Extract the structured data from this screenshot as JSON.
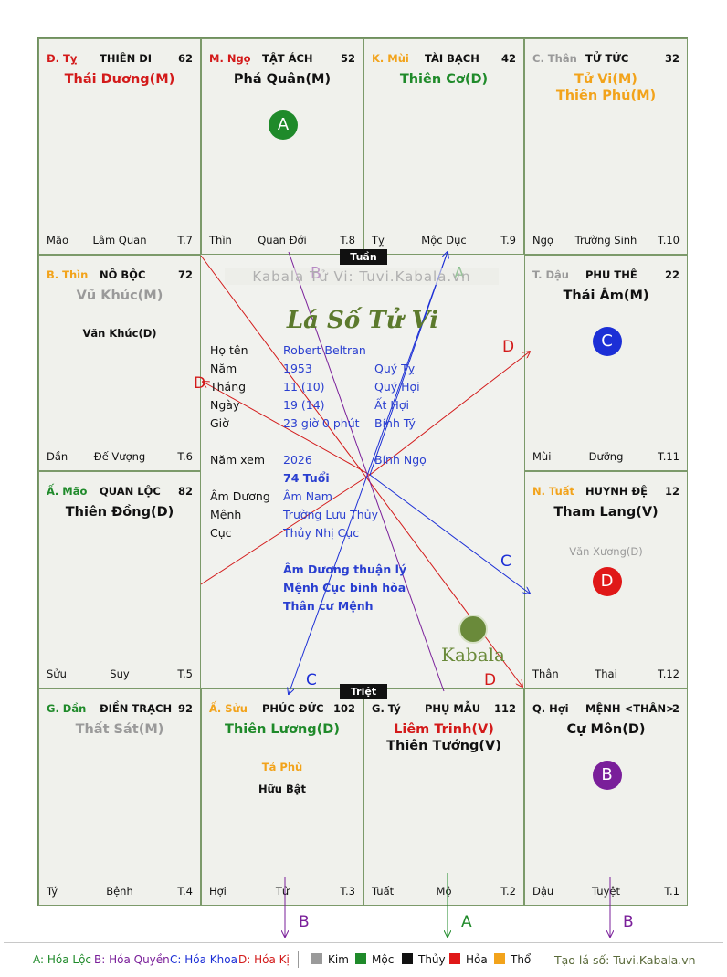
{
  "colors": {
    "green": "#1f8a2a",
    "purple": "#7a1f9a",
    "blue": "#1c2fd6",
    "red": "#d31a1a",
    "orange": "#f2a31b",
    "gray": "#9a9a9a",
    "black": "#111111"
  },
  "cells": [
    {
      "branch": "Đ. Tỵ",
      "branch_color": "#d31a1a",
      "palace": "THIÊN DI",
      "num": "62",
      "main": [
        {
          "t": "Thái Dương(M)",
          "c": "#d31a1a"
        }
      ],
      "minor": [],
      "foot_l": "Mão",
      "foot_m": "Lâm Quan",
      "foot_r": "T.7",
      "badge": null
    },
    {
      "branch": "M. Ngọ",
      "branch_color": "#d31a1a",
      "palace": "TẬT ÁCH",
      "num": "52",
      "main": [
        {
          "t": "Phá Quân(M)",
          "c": "#111111"
        }
      ],
      "minor": [],
      "foot_l": "Thìn",
      "foot_m": "Quan Đới",
      "foot_r": "T.8",
      "badge": {
        "t": "A",
        "c": "#1f8a2a"
      }
    },
    {
      "branch": "K. Mùi",
      "branch_color": "#f2a31b",
      "palace": "TÀI BẠCH",
      "num": "42",
      "main": [
        {
          "t": "Thiên Cơ(D)",
          "c": "#1f8a2a"
        }
      ],
      "minor": [],
      "foot_l": "Tỵ",
      "foot_m": "Mộc Dục",
      "foot_r": "T.9",
      "badge": null
    },
    {
      "branch": "C. Thân",
      "branch_color": "#9a9a9a",
      "palace": "TỬ TỨC",
      "num": "32",
      "main": [
        {
          "t": "Tử Vi(M)",
          "c": "#f2a31b"
        },
        {
          "t": "Thiên Phủ(M)",
          "c": "#f2a31b"
        }
      ],
      "minor": [],
      "foot_l": "Ngọ",
      "foot_m": "Trường Sinh",
      "foot_r": "T.10",
      "badge": null
    },
    {
      "branch": "B. Thìn",
      "branch_color": "#f2a31b",
      "palace": "NÔ BỘC",
      "num": "72",
      "main": [
        {
          "t": "Vũ Khúc(M)",
          "c": "#9a9a9a"
        }
      ],
      "minor": [
        "Văn Khúc(D)"
      ],
      "foot_l": "Dần",
      "foot_m": "Đế Vượng",
      "foot_r": "T.6",
      "badge": null
    },
    {
      "branch": "T. Dậu",
      "branch_color": "#9a9a9a",
      "palace": "PHU THÊ",
      "num": "22",
      "main": [
        {
          "t": "Thái Âm(M)",
          "c": "#111111"
        }
      ],
      "minor": [],
      "foot_l": "Mùi",
      "foot_m": "Dưỡng",
      "foot_r": "T.11",
      "badge": {
        "t": "C",
        "c": "#1c2fd6"
      }
    },
    {
      "branch": "Ấ. Mão",
      "branch_color": "#1f8a2a",
      "palace": "QUAN LỘC",
      "num": "82",
      "main": [
        {
          "t": "Thiên Đồng(D)",
          "c": "#111111"
        }
      ],
      "minor": [],
      "foot_l": "Sửu",
      "foot_m": "Suy",
      "foot_r": "T.5",
      "badge": null
    },
    {
      "branch": "N. Tuất",
      "branch_color": "#f2a31b",
      "palace": "HUYNH ĐỆ",
      "num": "12",
      "main": [
        {
          "t": "Tham Lang(V)",
          "c": "#111111"
        }
      ],
      "minor_gray": [
        "Văn Xương(D)"
      ],
      "foot_l": "Thân",
      "foot_m": "Thai",
      "foot_r": "T.12",
      "badge": {
        "t": "D",
        "c": "#e01818"
      }
    },
    {
      "branch": "G. Dần",
      "branch_color": "#1f8a2a",
      "palace": "ĐIỀN TRẠCH",
      "num": "92",
      "main": [
        {
          "t": "Thất Sát(M)",
          "c": "#9a9a9a"
        }
      ],
      "minor": [],
      "foot_l": "Tý",
      "foot_m": "Bệnh",
      "foot_r": "T.4",
      "badge": null
    },
    {
      "branch": "Ấ. Sửu",
      "branch_color": "#f2a31b",
      "palace": "PHÚC ĐỨC",
      "num": "102",
      "main": [
        {
          "t": "Thiên Lương(D)",
          "c": "#1f8a2a"
        }
      ],
      "minor_orange": [
        "Tả Phù"
      ],
      "minor": [
        "Hữu Bật"
      ],
      "foot_l": "Hợi",
      "foot_m": "Tử",
      "foot_r": "T.3",
      "badge": null
    },
    {
      "branch": "G. Tý",
      "branch_color": "#111111",
      "palace": "PHỤ MẪU",
      "num": "112",
      "main": [
        {
          "t": "Liêm Trinh(V)",
          "c": "#d31a1a"
        },
        {
          "t": "Thiên Tướng(V)",
          "c": "#111111"
        }
      ],
      "minor": [],
      "foot_l": "Tuất",
      "foot_m": "Mộ",
      "foot_r": "T.2",
      "badge": null
    },
    {
      "branch": "Q. Hợi",
      "branch_color": "#111111",
      "palace": "MỆNH <THÂN>",
      "num": "2",
      "main": [
        {
          "t": "Cự Môn(D)",
          "c": "#111111"
        }
      ],
      "minor": [],
      "foot_l": "Dậu",
      "foot_m": "Tuyệt",
      "foot_r": "T.1",
      "badge": {
        "t": "B",
        "c": "#7a1f9a"
      }
    }
  ],
  "tuan_label": "Tuần",
  "triet_label": "Triệt",
  "watermark": "Kabala Tử Vi: Tuvi.Kabala.vn",
  "script_title": "Lá Số Tử Vi",
  "info": {
    "ho_ten_k": "Họ tên",
    "ho_ten_v": "Robert Beltran",
    "nam_k": "Năm",
    "nam_v1": "1953",
    "nam_v2": "Quý Tỵ",
    "thang_k": "Tháng",
    "thang_v1": "11  (10)",
    "thang_v2": "Quý Hợi",
    "ngay_k": "Ngày",
    "ngay_v1": "19  (14)",
    "ngay_v2": "Ất Hợi",
    "gio_k": "Giờ",
    "gio_v1": "23 giờ 0 phút",
    "gio_v2": "Bính Tý",
    "namxem_k": "Năm xem",
    "namxem_v1": "2026",
    "namxem_v2": "Bính Ngọ",
    "tuoi": "74 Tuổi",
    "amduong_k": "Âm Dương",
    "amduong_v": "Âm Nam",
    "menh_k": "Mệnh",
    "menh_v": "Trường Lưu Thủy",
    "cuc_k": "Cục",
    "cuc_v": "Thủy Nhị Cục",
    "note1": "Âm Dương thuận lý",
    "note2": "Mệnh Cục bình hòa",
    "note3": "Thân cư Mệnh"
  },
  "kabala_logo": "Kabala",
  "arrow_labels": {
    "a1": "A",
    "b1": "B",
    "c1": "C",
    "d1": "D",
    "d2": "D",
    "c2": "C",
    "d3": "D",
    "b2": "B",
    "a2": "A",
    "b3": "B"
  },
  "legend": {
    "a": "A: Hóa Lộc",
    "b": "B: Hóa Quyền",
    "c": "C: Hóa Khoa",
    "d": "D: Hóa Kị",
    "kim": "Kim",
    "moc": "Mộc",
    "thuy": "Thủy",
    "hoa": "Hỏa",
    "tho": "Thổ",
    "credit": "Tạo lá số: Tuvi.Kabala.vn"
  }
}
